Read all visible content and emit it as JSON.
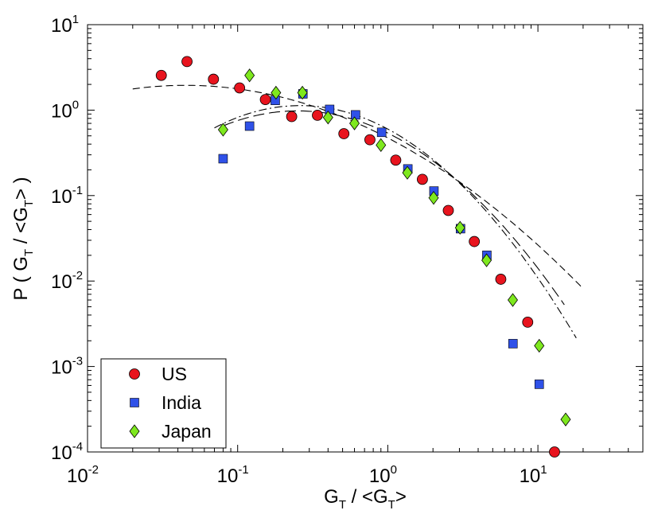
{
  "chart_data": {
    "type": "scatter",
    "xscale": "log",
    "yscale": "log",
    "xlim": [
      0.01,
      50
    ],
    "ylim": [
      0.0001,
      10
    ],
    "xlabel": {
      "main": "G",
      "sub": "T",
      "rest": " / <G",
      "sub2": "T",
      "end": ">"
    },
    "ylabel": {
      "main": "P ( G",
      "sub": "T",
      "rest": " / <G",
      "sub2": "T",
      "end": "> )"
    },
    "xticks": [
      {
        "value": 0.01,
        "base": "10",
        "exp": "-2"
      },
      {
        "value": 0.1,
        "base": "10",
        "exp": "-1"
      },
      {
        "value": 1,
        "base": "10",
        "exp": "0"
      },
      {
        "value": 10,
        "base": "10",
        "exp": "1"
      }
    ],
    "yticks": [
      {
        "value": 0.0001,
        "base": "10",
        "exp": "-4"
      },
      {
        "value": 0.001,
        "base": "10",
        "exp": "-3"
      },
      {
        "value": 0.01,
        "base": "10",
        "exp": "-2"
      },
      {
        "value": 0.1,
        "base": "10",
        "exp": "-1"
      },
      {
        "value": 1,
        "base": "10",
        "exp": "0"
      },
      {
        "value": 10,
        "base": "10",
        "exp": "1"
      }
    ],
    "legend_position": "bottom-left",
    "series": [
      {
        "name": "US",
        "marker": "circle",
        "color": "#e8141e",
        "points": [
          [
            0.031,
            2.55
          ],
          [
            0.046,
            3.7
          ],
          [
            0.069,
            2.3
          ],
          [
            0.103,
            1.82
          ],
          [
            0.153,
            1.33
          ],
          [
            0.229,
            0.84
          ],
          [
            0.34,
            0.87
          ],
          [
            0.51,
            0.53
          ],
          [
            0.76,
            0.45
          ],
          [
            1.13,
            0.26
          ],
          [
            1.7,
            0.155
          ],
          [
            2.53,
            0.067
          ],
          [
            3.77,
            0.029
          ],
          [
            5.66,
            0.0105
          ],
          [
            8.55,
            0.0033
          ],
          [
            12.9,
            0.0001
          ]
        ]
      },
      {
        "name": "India",
        "marker": "square",
        "color": "#2f51e8",
        "points": [
          [
            0.08,
            0.27
          ],
          [
            0.12,
            0.65
          ],
          [
            0.178,
            1.3
          ],
          [
            0.272,
            1.55
          ],
          [
            0.41,
            1.02
          ],
          [
            0.61,
            0.88
          ],
          [
            0.91,
            0.55
          ],
          [
            1.36,
            0.205
          ],
          [
            2.03,
            0.113
          ],
          [
            3.05,
            0.041
          ],
          [
            4.57,
            0.02
          ],
          [
            6.82,
            0.00185
          ],
          [
            10.2,
            0.00062
          ]
        ]
      },
      {
        "name": "Japan",
        "marker": "diamond",
        "color": "#7ee81e",
        "points": [
          [
            0.08,
            0.59
          ],
          [
            0.12,
            2.55
          ],
          [
            0.18,
            1.6
          ],
          [
            0.27,
            1.6
          ],
          [
            0.4,
            0.82
          ],
          [
            0.6,
            0.7
          ],
          [
            0.9,
            0.39
          ],
          [
            1.35,
            0.185
          ],
          [
            2.02,
            0.094
          ],
          [
            3.03,
            0.042
          ],
          [
            4.55,
            0.0175
          ],
          [
            6.8,
            0.006
          ],
          [
            10.2,
            0.00175
          ],
          [
            15.3,
            0.00024
          ]
        ]
      }
    ],
    "fit_curves": [
      {
        "name": "fit-dashed",
        "style": "dashed",
        "x_range": [
          0.02,
          20
        ],
        "peak_x": 0.045,
        "peak_y": 1.95,
        "sigma_ln10": 0.8
      },
      {
        "name": "fit-dashdot",
        "style": "dashdot",
        "x_range": [
          0.07,
          18
        ],
        "peak_x": 0.26,
        "peak_y": 1.13,
        "sigma_ln10": 0.52
      },
      {
        "name": "fit-longdash",
        "style": "longdash",
        "x_range": [
          0.08,
          15
        ],
        "peak_x": 0.25,
        "peak_y": 0.98,
        "sigma_ln10": 0.55
      }
    ]
  }
}
